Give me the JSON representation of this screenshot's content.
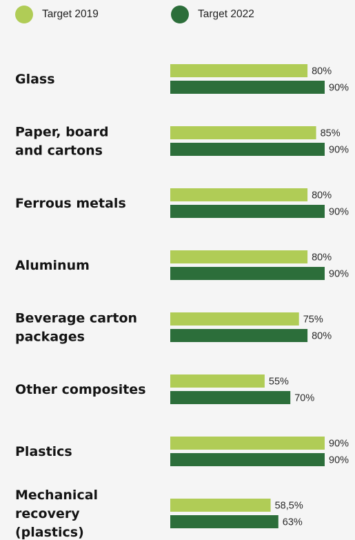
{
  "colors": {
    "target_2019": "#b0cc56",
    "target_2022": "#2c6e3a",
    "background": "#f5f5f5",
    "text": "#141414"
  },
  "legend": [
    {
      "label": "Target 2019",
      "color": "#b0cc56"
    },
    {
      "label": "Target 2022",
      "color": "#2c6e3a"
    }
  ],
  "chart_data": {
    "type": "bar",
    "orientation": "horizontal",
    "title": "",
    "xlabel": "",
    "ylabel": "",
    "xlim": [
      0,
      90
    ],
    "grid": false,
    "legend_position": "top",
    "categories": [
      [
        "Glass"
      ],
      [
        "Paper, board",
        "and cartons"
      ],
      [
        "Ferrous metals"
      ],
      [
        "Aluminum"
      ],
      [
        "Beverage carton",
        "packages"
      ],
      [
        "Other composites"
      ],
      [
        "Plastics"
      ],
      [
        "Mechanical",
        "recovery",
        "(plastics)"
      ]
    ],
    "series": [
      {
        "name": "Target 2019",
        "values": [
          80,
          85,
          80,
          80,
          75,
          55,
          90,
          58.5
        ],
        "labels": [
          "80%",
          "85%",
          "80%",
          "80%",
          "75%",
          "55%",
          "90%",
          "58,5%"
        ]
      },
      {
        "name": "Target 2022",
        "values": [
          90,
          90,
          90,
          90,
          80,
          70,
          90,
          63
        ],
        "labels": [
          "90%",
          "90%",
          "90%",
          "90%",
          "80%",
          "70%",
          "90%",
          "63%"
        ]
      }
    ]
  }
}
